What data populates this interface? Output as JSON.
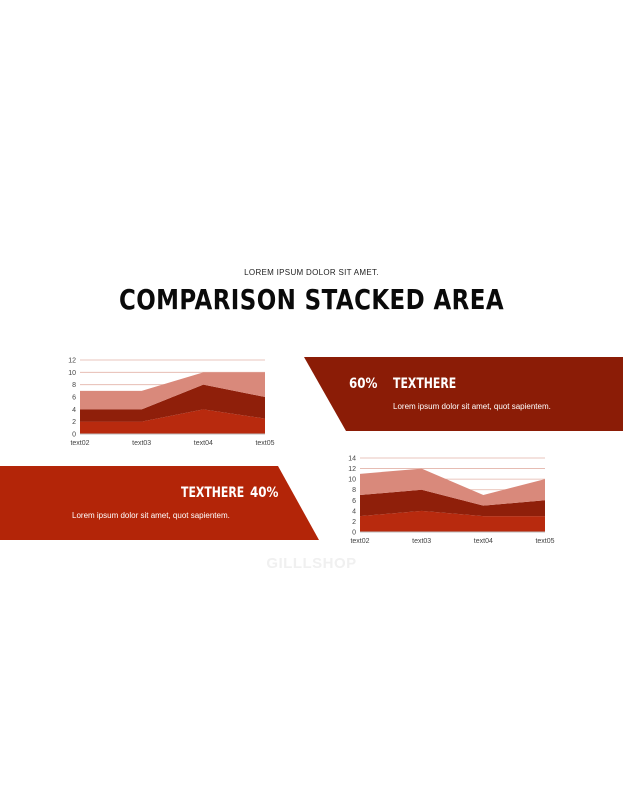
{
  "header": {
    "subtitle": "LOREM IPSUM DOLOR SIT AMET.",
    "title": "COMPARISON STACKED AREA"
  },
  "panel_right": {
    "percent": "60%",
    "heading": "TEXTHERE",
    "description": "Lorem ipsum dolor sit amet, quot sapientem.",
    "color": "#8b1c06"
  },
  "panel_left": {
    "percent": "40%",
    "heading": "TEXTHERE",
    "description": "Lorem ipsum dolor sit amet, quot sapientem.",
    "color": "#b32508"
  },
  "watermark": "GILLLSHOP",
  "chart_data": [
    {
      "type": "area",
      "stacked": true,
      "categories": [
        "text02",
        "text03",
        "text04",
        "text05"
      ],
      "series": [
        {
          "values": [
            2,
            2,
            4,
            2.5
          ],
          "color": "#b82a0e"
        },
        {
          "values": [
            2,
            2,
            4,
            3.5
          ],
          "color": "#8f1f0a"
        },
        {
          "values": [
            3,
            3,
            2,
            4
          ],
          "color": "#d9897b"
        }
      ],
      "ylim": [
        0,
        12
      ],
      "yticks": [
        0,
        2,
        4,
        6,
        8,
        10,
        12
      ],
      "grid": true
    },
    {
      "type": "area",
      "stacked": true,
      "categories": [
        "text02",
        "text03",
        "text04",
        "text05"
      ],
      "series": [
        {
          "values": [
            3,
            4,
            3,
            3
          ],
          "color": "#b82a0e"
        },
        {
          "values": [
            4,
            4,
            2,
            3
          ],
          "color": "#8f1f0a"
        },
        {
          "values": [
            4,
            4,
            2,
            4
          ],
          "color": "#d9897b"
        }
      ],
      "ylim": [
        0,
        14
      ],
      "yticks": [
        0,
        2,
        4,
        6,
        8,
        10,
        12,
        14
      ],
      "grid": true
    }
  ]
}
